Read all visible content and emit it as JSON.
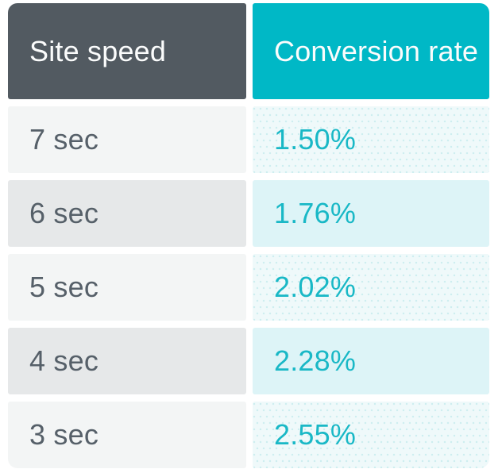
{
  "chart_data": {
    "type": "table",
    "title": "",
    "columns": [
      "Site speed",
      "Conversion rate"
    ],
    "categories": [
      "7 sec",
      "6 sec",
      "5 sec",
      "4 sec",
      "3 sec"
    ],
    "site_speeds_sec": [
      7,
      6,
      5,
      4,
      3
    ],
    "conversion_rates_pct": [
      1.5,
      1.76,
      2.02,
      2.28,
      2.55
    ],
    "value_labels": [
      "1.50%",
      "1.76%",
      "2.02%",
      "2.28%",
      "2.55%"
    ]
  },
  "table": {
    "header": {
      "site_speed": "Site speed",
      "conversion_rate": "Conversion rate"
    },
    "rows": [
      {
        "site_speed": "7 sec",
        "conversion_rate": "1.50%"
      },
      {
        "site_speed": "6 sec",
        "conversion_rate": "1.76%"
      },
      {
        "site_speed": "5 sec",
        "conversion_rate": "2.02%"
      },
      {
        "site_speed": "4 sec",
        "conversion_rate": "2.28%"
      },
      {
        "site_speed": "3 sec",
        "conversion_rate": "2.55%"
      }
    ]
  },
  "colors": {
    "header_left_bg": "#525A61",
    "header_right_bg": "#00B8C6",
    "header_text": "#FFFFFF",
    "speed_row_light_bg": "#F3F5F5",
    "speed_row_dark_bg": "#E6E8E9",
    "rate_row_light_bg": "#EFF9FA",
    "rate_row_dark_bg": "#DDF4F7",
    "rate_dot_pattern": "#CDEDF0",
    "speed_text": "#566069",
    "rate_text": "#19B8C6"
  }
}
